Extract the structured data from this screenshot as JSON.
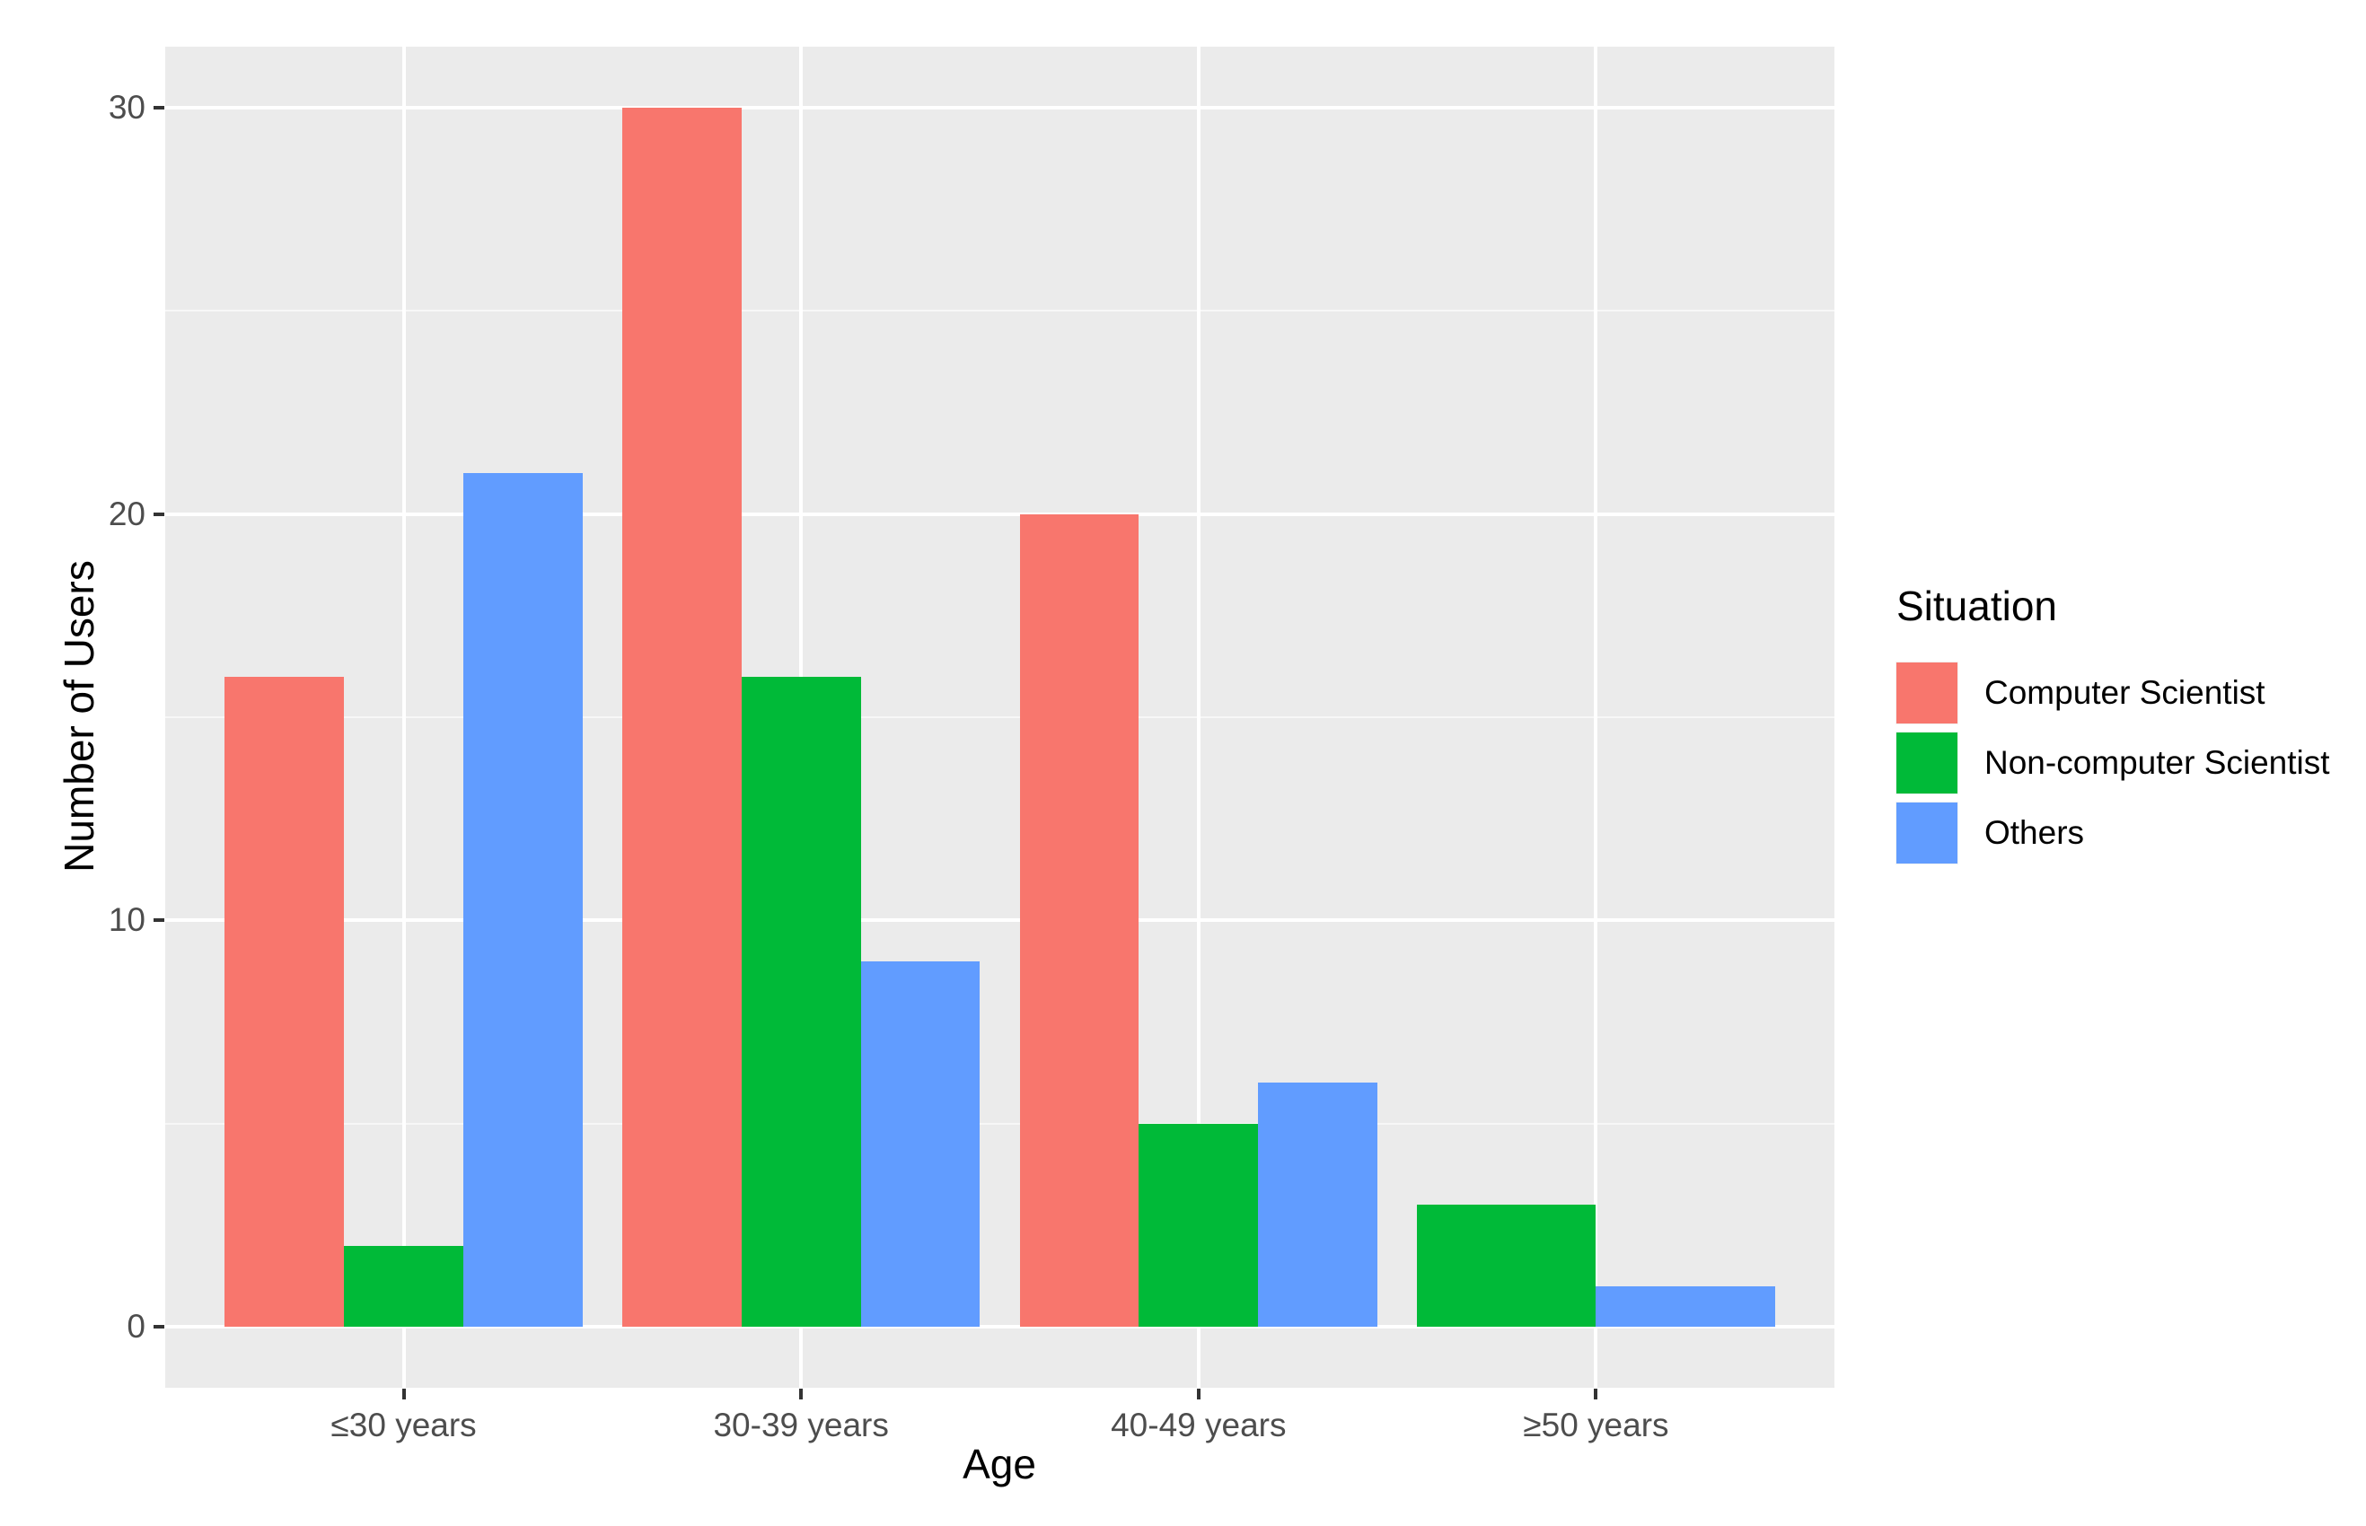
{
  "chart_data": {
    "type": "bar",
    "title": "",
    "xlabel": "Age",
    "ylabel": "Number of Users",
    "categories": [
      "≤30 years",
      "30-39 years",
      "40-49 years",
      "≥50 years"
    ],
    "series": [
      {
        "name": "Computer Scientist",
        "color": "#F8766D",
        "values": [
          16,
          30,
          20,
          null
        ]
      },
      {
        "name": "Non-computer Scientist",
        "color": "#00BA38",
        "values": [
          2,
          16,
          5,
          3
        ]
      },
      {
        "name": "Others",
        "color": "#619CFF",
        "values": [
          21,
          9,
          6,
          1
        ]
      }
    ],
    "legend_title": "Situation",
    "legend_position": "right",
    "ylim": [
      0,
      30
    ],
    "yticks": [
      0,
      10,
      20,
      30
    ],
    "yticks_minor": [
      5,
      15,
      25
    ],
    "grid": true,
    "bar_layout": "dodge",
    "panel_bg": "#EBEBEB",
    "grid_color": "#FFFFFF",
    "tick_label_color": "#4D4D4D"
  }
}
